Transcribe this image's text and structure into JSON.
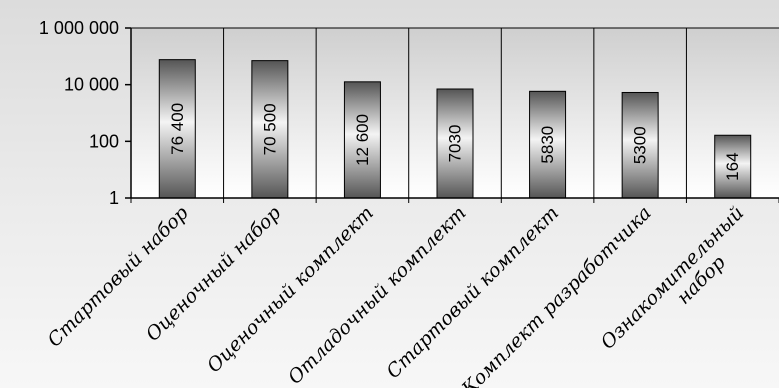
{
  "chart_data": {
    "type": "bar",
    "title": "",
    "xlabel": "",
    "ylabel": "",
    "yscale": "log",
    "ylim": [
      1,
      1000000
    ],
    "yticks": [
      1,
      100,
      10000,
      1000000
    ],
    "ytick_labels": [
      "1",
      "100",
      "10 000",
      "1 000 000"
    ],
    "grid": "vertical",
    "categories": [
      "Стартовый набор",
      "Оценочный набор",
      "Оценочный комплект",
      "Отладочный комплект",
      "Стартовый комплект",
      "Комплект разработчика",
      "Ознакомительный набор"
    ],
    "values": [
      76400,
      70500,
      12600,
      7030,
      5830,
      5300,
      164
    ],
    "data_labels": [
      "76 400",
      "70 500",
      "12 600",
      "7030",
      "5830",
      "5300",
      "164"
    ],
    "colors": {
      "plot_top": "#cfcfcf",
      "plot_bottom": "#ffffff",
      "bar_dark": "#555555",
      "bar_light": "#f4f4f4"
    }
  }
}
